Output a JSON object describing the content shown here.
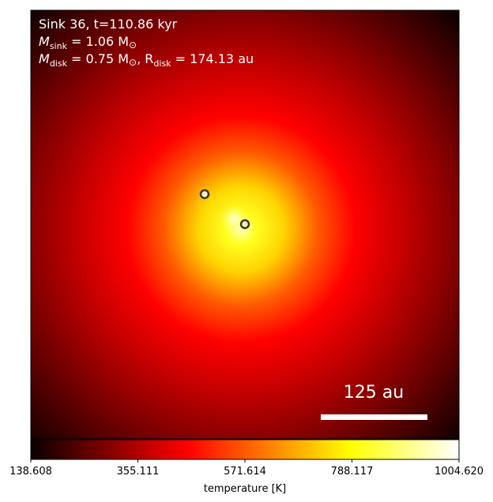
{
  "chart_data": {
    "type": "heatmap",
    "title_lines": {
      "line1": "Sink 36, t=110.86 kyr",
      "line2_prefix": "M",
      "line2_sub": "sink",
      "line2_rest": " = 1.06 M",
      "line2_sym": "⊙",
      "line3_prefix": "M",
      "line3_sub": "disk",
      "line3_mid": " = 0.75 M",
      "line3_sym": "⊙",
      "line3_sep": ", R",
      "line3_sub2": "disk",
      "line3_rest": " = 174.13 au"
    },
    "scale_bar": {
      "label": "125 au",
      "length_au": 125
    },
    "colorbar": {
      "label": "temperature [K]",
      "min": 138.608,
      "max": 1004.62,
      "ticks": [
        "138.608",
        "355.111",
        "571.614",
        "788.117",
        "1004.620"
      ],
      "colormap": "hot"
    },
    "sinks": [
      {
        "name": "sink-upper-left"
      },
      {
        "name": "sink-center"
      }
    ],
    "grid": false
  }
}
